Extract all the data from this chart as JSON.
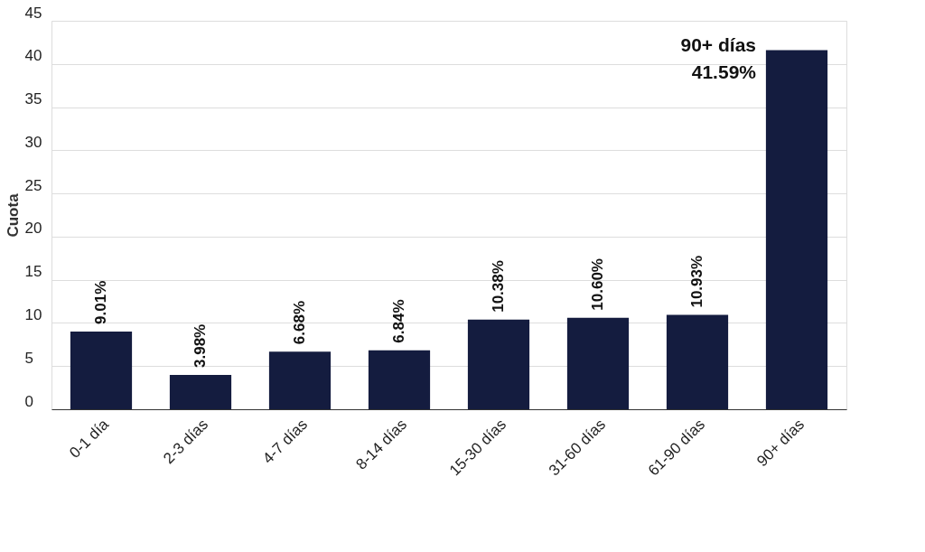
{
  "chart_data": {
    "type": "bar",
    "categories": [
      "0-1 día",
      "2-3 días",
      "4-7 días",
      "8-14 días",
      "15-30 días",
      "31-60 días",
      "61-90 días",
      "90+ días"
    ],
    "values": [
      9.01,
      3.98,
      6.68,
      6.84,
      10.38,
      10.6,
      10.93,
      41.59
    ],
    "value_labels": [
      "9.01%",
      "3.98%",
      "6.68%",
      "6.84%",
      "10.38%",
      "10.60%",
      "10.93%",
      null
    ],
    "color": "#141c3f",
    "ylabel": "Cuota",
    "ylim": [
      0,
      45
    ],
    "yticks": [
      0,
      5,
      10,
      15,
      20,
      25,
      30,
      35,
      40,
      45
    ],
    "grid": "y",
    "annotations": [
      {
        "text": "90+ días\n41.59%",
        "x": "90+ días",
        "y": 41.59
      }
    ]
  }
}
